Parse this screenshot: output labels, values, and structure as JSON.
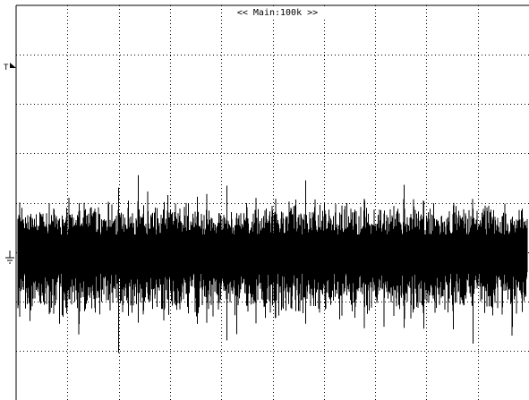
{
  "screen": {
    "title": "<< Main:100k >>",
    "trigger_marker": "T",
    "ground_marker": "⏚"
  },
  "grid": {
    "divisions_x": 10,
    "divisions_y": 8,
    "style": "dotted"
  },
  "waveform": {
    "color": "#000000",
    "description_visible": false
  }
}
